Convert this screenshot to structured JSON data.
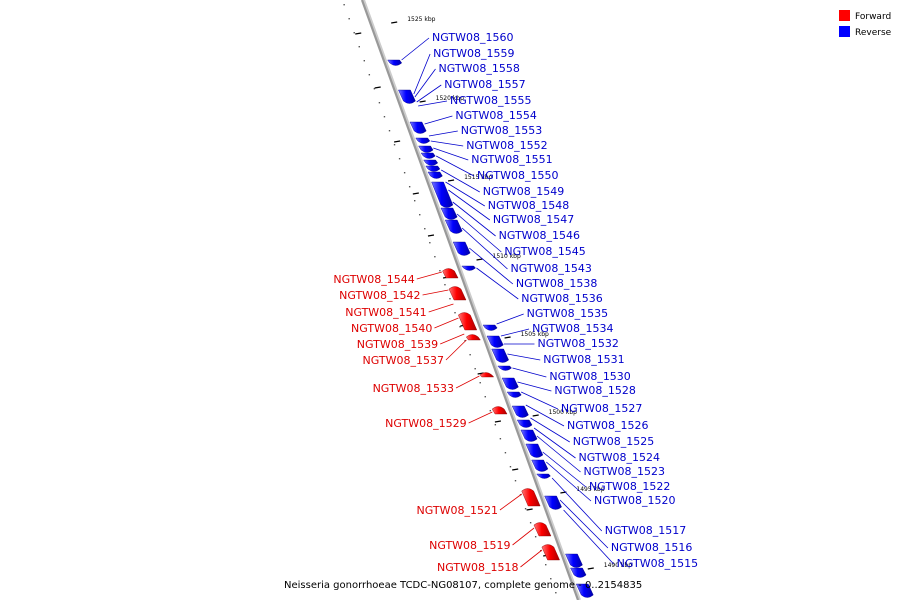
{
  "colors": {
    "forward": "#ff0000",
    "forward_label": "#dd0000",
    "reverse": "#0000ff",
    "reverse_label": "#0000cc",
    "backbone": "#999999"
  },
  "legend": [
    {
      "label": "Forward",
      "color": "#ff0000"
    },
    {
      "label": "Reverse",
      "color": "#0000ff"
    }
  ],
  "caption": "Neisseria gonorrhoeae TCDC-NG08107, complete genome - 0..2154835",
  "ticks": [
    "1525 kbp",
    "1520 kbp",
    "1515 kbp",
    "1510 kbp",
    "1505 kbp",
    "1500 kbp",
    "1495 kbp",
    "1490 kbp"
  ],
  "forward_genes": [
    "NGTW08_1544",
    "NGTW08_1542",
    "NGTW08_1541",
    "NGTW08_1540",
    "NGTW08_1539",
    "NGTW08_1537",
    "NGTW08_1533",
    "NGTW08_1529",
    "NGTW08_1521",
    "NGTW08_1519",
    "NGTW08_1518"
  ],
  "reverse_genes": [
    "NGTW08_1560",
    "NGTW08_1559",
    "NGTW08_1558",
    "NGTW08_1557",
    "NGTW08_1555",
    "NGTW08_1554",
    "NGTW08_1553",
    "NGTW08_1552",
    "NGTW08_1551",
    "NGTW08_1550",
    "NGTW08_1549",
    "NGTW08_1548",
    "NGTW08_1547",
    "NGTW08_1546",
    "NGTW08_1545",
    "NGTW08_1543",
    "NGTW08_1538",
    "NGTW08_1536",
    "NGTW08_1535",
    "NGTW08_1534",
    "NGTW08_1532",
    "NGTW08_1531",
    "NGTW08_1530",
    "NGTW08_1528",
    "NGTW08_1527",
    "NGTW08_1526",
    "NGTW08_1525",
    "NGTW08_1524",
    "NGTW08_1523",
    "NGTW08_1522",
    "NGTW08_1520",
    "NGTW08_1517",
    "NGTW08_1516",
    "NGTW08_1515"
  ]
}
